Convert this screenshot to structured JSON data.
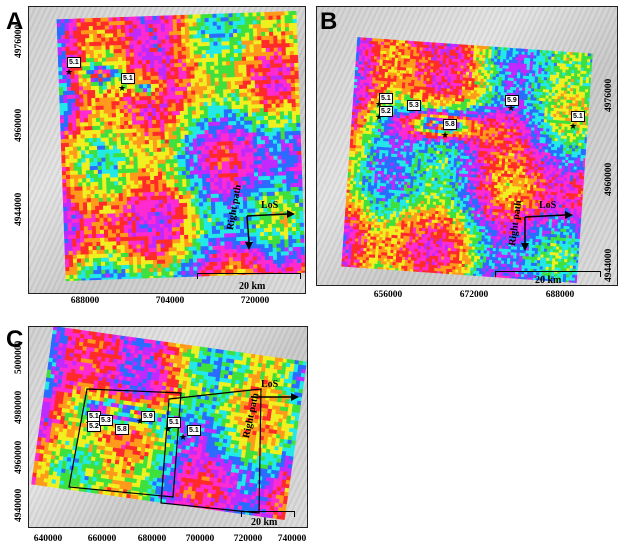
{
  "panels": {
    "a": {
      "label": "A",
      "x_ticks": [
        "688000",
        "704000",
        "720000"
      ],
      "y_ticks": [
        "4976000",
        "4960000",
        "4944000"
      ],
      "quakes": [
        {
          "mag": "5.1"
        },
        {
          "mag": "5.1"
        }
      ],
      "los_label": "LoS",
      "path_label": "Right path",
      "scale_label": "20 km"
    },
    "b": {
      "label": "B",
      "x_ticks": [
        "656000",
        "672000",
        "688000"
      ],
      "y_ticks": [
        "4976000",
        "4960000",
        "4944000"
      ],
      "quakes": [
        {
          "mag": "5.1"
        },
        {
          "mag": "5.2"
        },
        {
          "mag": "5.3"
        },
        {
          "mag": "5.8"
        },
        {
          "mag": "5.9"
        },
        {
          "mag": "5.1"
        }
      ],
      "los_label": "LoS",
      "path_label": "Right path",
      "scale_label": "20 km"
    },
    "c": {
      "label": "C",
      "x_ticks": [
        "640000",
        "660000",
        "680000",
        "700000",
        "720000",
        "740000"
      ],
      "y_ticks": [
        "5000000",
        "4980000",
        "4960000",
        "4940000"
      ],
      "quakes": [
        {
          "mag": "5.1"
        },
        {
          "mag": "5.2"
        },
        {
          "mag": "5.3"
        },
        {
          "mag": "5.8"
        },
        {
          "mag": "5.9"
        },
        {
          "mag": "5.1"
        },
        {
          "mag": "5.1"
        }
      ],
      "los_label": "LoS",
      "path_label": "Right path",
      "scale_label": "20 km"
    }
  },
  "colors": {
    "fringe_palette": [
      "#ff2a2a",
      "#ff9a1a",
      "#f0f020",
      "#3ee03e",
      "#22e8e8",
      "#2a6cff",
      "#c02aff",
      "#ff2ad0"
    ],
    "hillshade": "#d4d4d4",
    "frame": "#222222"
  }
}
